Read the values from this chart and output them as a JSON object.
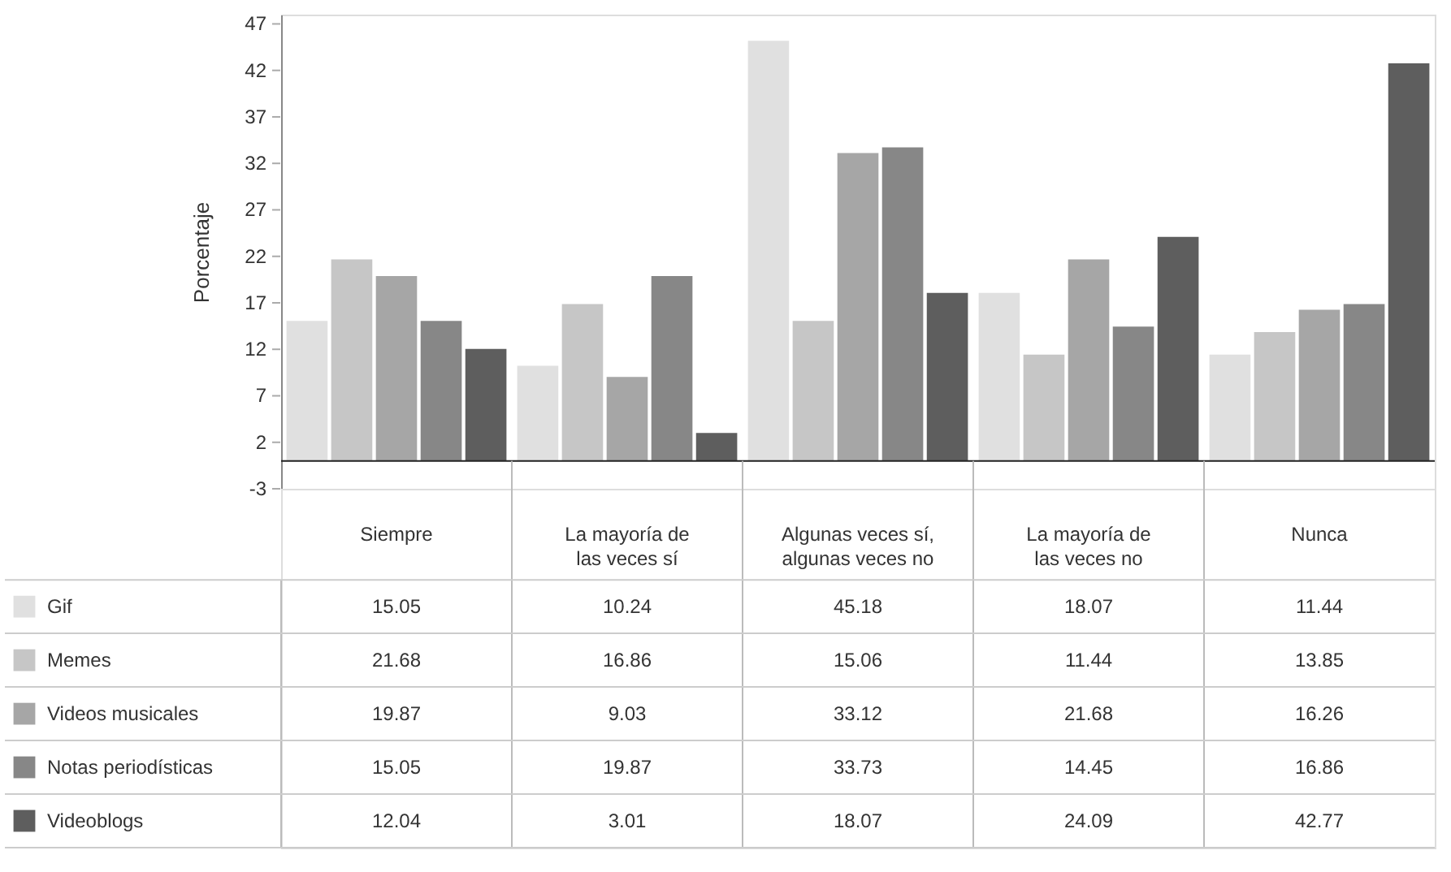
{
  "chart_data": {
    "type": "bar",
    "ylabel": "Porcentaje",
    "categories": [
      "Siempre",
      "La mayoría de\nlas veces sí",
      "Algunas veces sí,\nalgunas veces no",
      "La mayoría de\nlas veces no",
      "Nunca"
    ],
    "series": [
      {
        "name": "Gif",
        "color": "#e0e0e0",
        "values": [
          15.05,
          10.24,
          45.18,
          18.07,
          11.44
        ]
      },
      {
        "name": "Memes",
        "color": "#c6c6c6",
        "values": [
          21.68,
          16.86,
          15.06,
          11.44,
          13.85
        ]
      },
      {
        "name": "Videos musicales",
        "color": "#a6a6a6",
        "values": [
          19.87,
          9.03,
          33.12,
          21.68,
          16.26
        ]
      },
      {
        "name": "Notas periodísticas",
        "color": "#878787",
        "values": [
          15.05,
          19.87,
          33.73,
          14.45,
          16.86
        ]
      },
      {
        "name": "Videoblogs",
        "color": "#5e5e5e",
        "values": [
          12.04,
          3.01,
          18.07,
          24.09,
          42.77
        ]
      }
    ],
    "ylim": [
      -3,
      48
    ],
    "yticks": [
      -3,
      2,
      7,
      12,
      17,
      22,
      27,
      32,
      37,
      42,
      47
    ],
    "grid": false,
    "legend": "bottom",
    "data_labels": true
  }
}
